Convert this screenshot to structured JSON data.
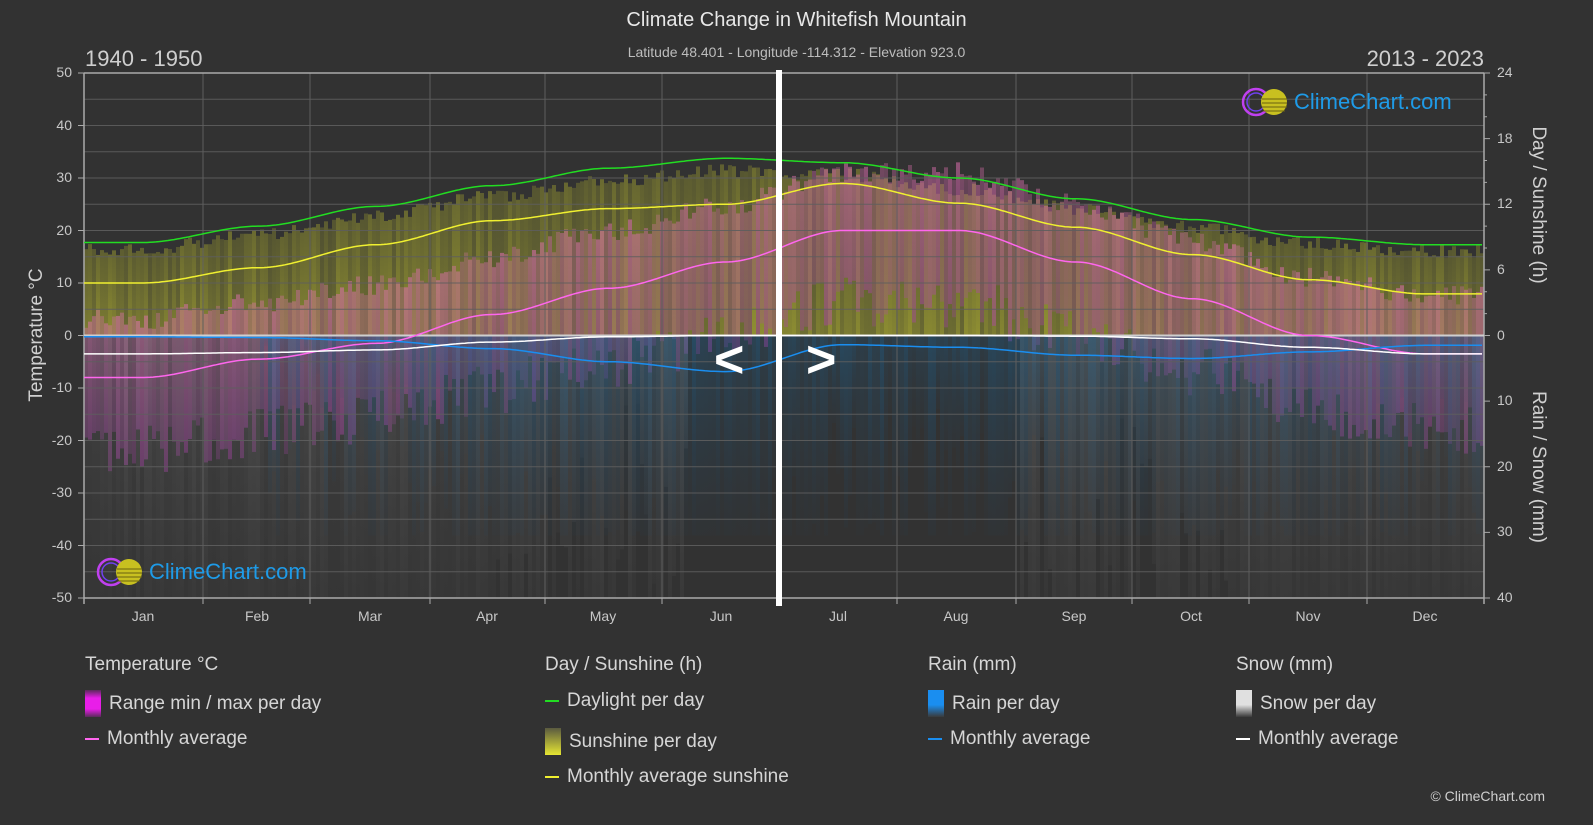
{
  "header": {
    "title": "Climate Change in Whitefish Mountain",
    "subtitle": "Latitude 48.401 - Longitude -114.312 - Elevation 923.0",
    "period_left": "1940 - 1950",
    "period_right": "2013 - 2023"
  },
  "axes": {
    "left_title": "Temperature °C",
    "right_title_top": "Day / Sunshine (h)",
    "right_title_bottom": "Rain / Snow (mm)",
    "left_ticks": [
      "50",
      "40",
      "30",
      "20",
      "10",
      "0",
      "-10",
      "-20",
      "-30",
      "-40",
      "-50"
    ],
    "right_ticks_top": [
      "24",
      "18",
      "12",
      "6",
      "0"
    ],
    "right_ticks_bottom": [
      "10",
      "20",
      "30",
      "40"
    ],
    "months": [
      "Jan",
      "Feb",
      "Mar",
      "Apr",
      "May",
      "Jun",
      "Jul",
      "Aug",
      "Sep",
      "Oct",
      "Nov",
      "Dec"
    ]
  },
  "navigation": {
    "prev_label": "<",
    "next_label": ">"
  },
  "logo": {
    "text": "ClimeChart.com"
  },
  "legend": {
    "groups": [
      {
        "heading": "Temperature °C",
        "items": [
          {
            "label": "Range min / max per day",
            "type": "swatch",
            "color": "#e81ee8"
          },
          {
            "label": "Monthly average",
            "type": "line",
            "color": "#ff66ee"
          }
        ]
      },
      {
        "heading": "Day / Sunshine (h)",
        "items": [
          {
            "label": "Daylight per day",
            "type": "line",
            "color": "#22dd22"
          },
          {
            "label": "Sunshine per day",
            "type": "swatch",
            "color": "#e6e633"
          },
          {
            "label": "Monthly average sunshine",
            "type": "line",
            "color": "#f0f030"
          }
        ]
      },
      {
        "heading": "Rain (mm)",
        "items": [
          {
            "label": "Rain per day",
            "type": "swatch",
            "color": "#1a8ef0"
          },
          {
            "label": "Monthly average",
            "type": "line",
            "color": "#1a8ef0"
          }
        ]
      },
      {
        "heading": "Snow (mm)",
        "items": [
          {
            "label": "Snow per day",
            "type": "swatch",
            "color": "#e0e0e0"
          },
          {
            "label": "Monthly average",
            "type": "line",
            "color": "#ffffff"
          }
        ]
      }
    ]
  },
  "copyright": "© ClimeChart.com",
  "chart_data": {
    "type": "line",
    "title": "Climate Change in Whitefish Mountain",
    "subtitle": "Latitude 48.401 - Longitude -114.312 - Elevation 923.0",
    "categories": [
      "Jan",
      "Feb",
      "Mar",
      "Apr",
      "May",
      "Jun",
      "Jul",
      "Aug",
      "Sep",
      "Oct",
      "Nov",
      "Dec"
    ],
    "xlabel": "",
    "ylabel": "Temperature °C",
    "ylim": [
      -50,
      50
    ],
    "y2label_top": "Day / Sunshine (h)",
    "y2lim_top": [
      0,
      24
    ],
    "y2label_bottom": "Rain / Snow (mm)",
    "y2lim_bottom": [
      0,
      40
    ],
    "grid": true,
    "legend_position": "bottom",
    "annotations": [
      "1940 - 1950",
      "2013 - 2023"
    ],
    "divider_after_month": "Jun",
    "series": [
      {
        "name": "Temperature monthly average (°C)",
        "axis": "left",
        "color": "#ff66ee",
        "values": [
          -8,
          -4.5,
          -1.5,
          4,
          9,
          14,
          20,
          20,
          14,
          7,
          0,
          -3.5
        ]
      },
      {
        "name": "Daylight per day (h)",
        "axis": "right_top",
        "color": "#22dd22",
        "values": [
          8.5,
          10,
          11.8,
          13.7,
          15.3,
          16.2,
          15.8,
          14.4,
          12.5,
          10.6,
          9,
          8.3
        ]
      },
      {
        "name": "Monthly average sunshine (h)",
        "axis": "right_top",
        "color": "#f0f030",
        "values": [
          4.8,
          6.2,
          8.3,
          10.5,
          11.6,
          12,
          13.9,
          12.1,
          9.9,
          7.4,
          5.1,
          3.8
        ]
      },
      {
        "name": "Rain monthly average (mm)",
        "axis": "right_bottom",
        "color": "#1a8ef0",
        "values": [
          0.2,
          0.3,
          0.8,
          2,
          4,
          5.5,
          1.4,
          1.8,
          3,
          3.5,
          2.5,
          1.5
        ]
      },
      {
        "name": "Snow monthly average (mm)",
        "axis": "right_bottom",
        "color": "#ffffff",
        "values": [
          2.8,
          2.6,
          2.2,
          1.0,
          0.2,
          0,
          0,
          0,
          0.1,
          0.5,
          1.8,
          2.8
        ]
      }
    ]
  }
}
